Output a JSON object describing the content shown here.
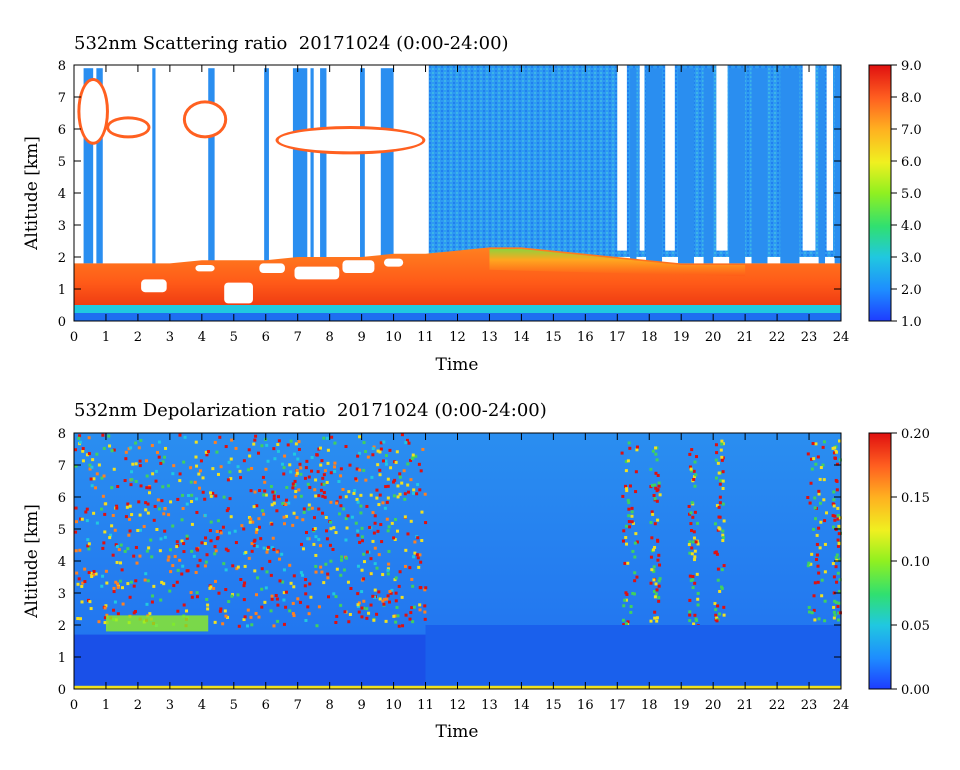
{
  "chart_data": [
    {
      "type": "heatmap",
      "title": "532nm Scattering ratio  20171024 (0:00-24:00)",
      "xlabel": "Time",
      "ylabel": "Altitude [km]",
      "xlim": [
        0,
        24
      ],
      "ylim": [
        0,
        8
      ],
      "x_ticks": [
        "0",
        "1",
        "2",
        "3",
        "4",
        "5",
        "6",
        "7",
        "8",
        "9",
        "10",
        "11",
        "12",
        "13",
        "14",
        "15",
        "16",
        "17",
        "18",
        "19",
        "20",
        "21",
        "22",
        "23",
        "24"
      ],
      "y_ticks": [
        "0",
        "1",
        "2",
        "3",
        "4",
        "5",
        "6",
        "7",
        "8"
      ],
      "colorbar": {
        "range": [
          1.0,
          9.0
        ],
        "ticks": [
          "1.0",
          "2.0",
          "3.0",
          "4.0",
          "5.0",
          "6.0",
          "7.0",
          "8.0",
          "9.0"
        ],
        "colors": [
          "#1e3cff",
          "#1e8cff",
          "#20c8e0",
          "#30e070",
          "#90f020",
          "#f0f020",
          "#ffb020",
          "#ff6020",
          "#e01010"
        ]
      },
      "layers": {
        "boundary_layer_top_km": [
          1.8,
          1.8,
          1.8,
          1.8,
          1.9,
          1.9,
          1.9,
          2.0,
          2.0,
          2.0,
          2.1,
          2.1,
          2.2,
          2.3,
          2.3,
          2.2,
          2.1,
          2.0,
          1.9,
          1.8,
          1.8,
          1.8,
          1.8,
          1.8,
          1.8
        ],
        "cloud_band_km": [
          [
            0.2,
            1.0,
            5.6,
            7.5
          ],
          [
            1.1,
            2.3,
            5.8,
            6.3
          ],
          [
            3.5,
            4.7,
            5.8,
            6.8
          ],
          [
            6.4,
            10.9,
            5.3,
            6.0
          ]
        ]
      },
      "grid": false
    },
    {
      "type": "heatmap",
      "title": "532nm Depolarization ratio  20171024 (0:00-24:00)",
      "xlabel": "Time",
      "ylabel": "Altitude [km]",
      "xlim": [
        0,
        24
      ],
      "ylim": [
        0,
        8
      ],
      "x_ticks": [
        "0",
        "1",
        "2",
        "3",
        "4",
        "5",
        "6",
        "7",
        "8",
        "9",
        "10",
        "11",
        "12",
        "13",
        "14",
        "15",
        "16",
        "17",
        "18",
        "19",
        "20",
        "21",
        "22",
        "23",
        "24"
      ],
      "y_ticks": [
        "0",
        "1",
        "2",
        "3",
        "4",
        "5",
        "6",
        "7",
        "8"
      ],
      "colorbar": {
        "range": [
          0.0,
          0.2
        ],
        "ticks": [
          "0.00",
          "0.05",
          "0.10",
          "0.15",
          "0.20"
        ],
        "colors": [
          "#1e3cff",
          "#1e8cff",
          "#20c8e0",
          "#30e070",
          "#90f020",
          "#f0f020",
          "#ffb020",
          "#ff6020",
          "#e01010"
        ]
      },
      "grid": false
    }
  ]
}
